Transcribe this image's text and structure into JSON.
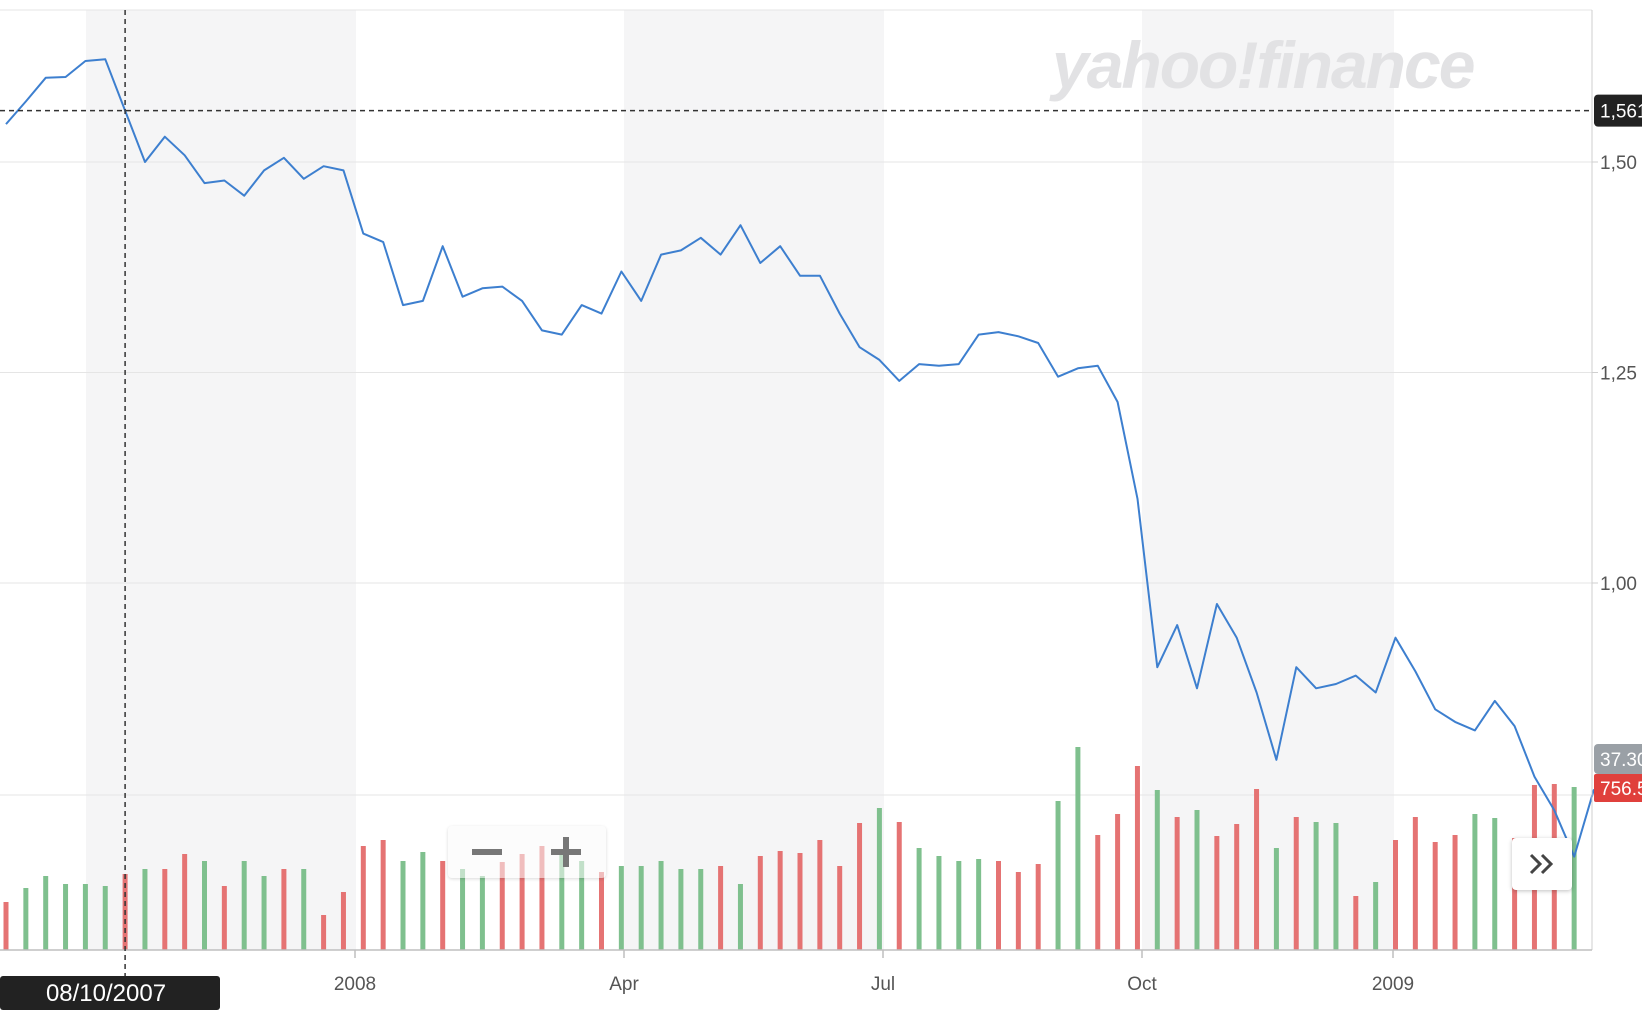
{
  "watermark": "yahoo!finance",
  "crosshair": {
    "date_label": "08/10/2007",
    "price_label": "1,561"
  },
  "price_tag": "37.30",
  "volume_tag": "756.5",
  "colors": {
    "line": "#3d7fcf",
    "volume_up": "#7fc08e",
    "volume_down": "#e57373",
    "band": "#f5f5f6",
    "grid": "#e5e5e5",
    "tag_dark": "#222222",
    "tag_grey": "#9aa0a6",
    "tag_red": "#e0403c"
  },
  "chart_data": {
    "type": "line",
    "xlabel": "",
    "ylabel": "",
    "x_ticks": [
      "2008",
      "Apr",
      "Jul",
      "Oct",
      "2009"
    ],
    "y_ticks": [
      "1,50",
      "1,25",
      "1,00"
    ],
    "series": [
      {
        "values": [
          1545,
          1572,
          1600,
          1601,
          1620,
          1622,
          1561,
          1500,
          1530,
          1508,
          1475,
          1478,
          1460,
          1490,
          1505,
          1480,
          1495,
          1490,
          1415,
          1405,
          1330,
          1335,
          1400,
          1340,
          1350,
          1352,
          1335,
          1300,
          1295,
          1330,
          1320,
          1370,
          1335,
          1390,
          1395,
          1410,
          1390,
          1425,
          1380,
          1400,
          1365,
          1365,
          1320,
          1280,
          1265,
          1240,
          1260,
          1258,
          1260,
          1295,
          1298,
          1293,
          1285,
          1245,
          1255,
          1258,
          1215,
          1100,
          900,
          950,
          875,
          975,
          935,
          870,
          790,
          900,
          875,
          880,
          890,
          870,
          935,
          895,
          850,
          835,
          825,
          860,
          830,
          770,
          730,
          675,
          755
        ]
      }
    ],
    "volume_bars": [
      {
        "v": 48,
        "dir": "down"
      },
      {
        "v": 62,
        "dir": "up"
      },
      {
        "v": 74,
        "dir": "up"
      },
      {
        "v": 66,
        "dir": "up"
      },
      {
        "v": 66,
        "dir": "up"
      },
      {
        "v": 64,
        "dir": "up"
      },
      {
        "v": 76,
        "dir": "down"
      },
      {
        "v": 81,
        "dir": "up"
      },
      {
        "v": 81,
        "dir": "down"
      },
      {
        "v": 96,
        "dir": "down"
      },
      {
        "v": 89,
        "dir": "up"
      },
      {
        "v": 64,
        "dir": "down"
      },
      {
        "v": 89,
        "dir": "up"
      },
      {
        "v": 74,
        "dir": "up"
      },
      {
        "v": 81,
        "dir": "down"
      },
      {
        "v": 81,
        "dir": "up"
      },
      {
        "v": 35,
        "dir": "down"
      },
      {
        "v": 58,
        "dir": "down"
      },
      {
        "v": 104,
        "dir": "down"
      },
      {
        "v": 110,
        "dir": "down"
      },
      {
        "v": 89,
        "dir": "up"
      },
      {
        "v": 98,
        "dir": "up"
      },
      {
        "v": 89,
        "dir": "down"
      },
      {
        "v": 81,
        "dir": "up"
      },
      {
        "v": 74,
        "dir": "up"
      },
      {
        "v": 88,
        "dir": "down"
      },
      {
        "v": 96,
        "dir": "down"
      },
      {
        "v": 104,
        "dir": "down"
      },
      {
        "v": 98,
        "dir": "up"
      },
      {
        "v": 89,
        "dir": "up"
      },
      {
        "v": 78,
        "dir": "down"
      },
      {
        "v": 84,
        "dir": "up"
      },
      {
        "v": 84,
        "dir": "up"
      },
      {
        "v": 89,
        "dir": "up"
      },
      {
        "v": 81,
        "dir": "up"
      },
      {
        "v": 81,
        "dir": "up"
      },
      {
        "v": 84,
        "dir": "down"
      },
      {
        "v": 66,
        "dir": "up"
      },
      {
        "v": 94,
        "dir": "down"
      },
      {
        "v": 99,
        "dir": "down"
      },
      {
        "v": 97,
        "dir": "down"
      },
      {
        "v": 110,
        "dir": "down"
      },
      {
        "v": 84,
        "dir": "down"
      },
      {
        "v": 127,
        "dir": "down"
      },
      {
        "v": 142,
        "dir": "up"
      },
      {
        "v": 128,
        "dir": "down"
      },
      {
        "v": 102,
        "dir": "up"
      },
      {
        "v": 94,
        "dir": "up"
      },
      {
        "v": 89,
        "dir": "up"
      },
      {
        "v": 91,
        "dir": "up"
      },
      {
        "v": 89,
        "dir": "down"
      },
      {
        "v": 78,
        "dir": "down"
      },
      {
        "v": 86,
        "dir": "down"
      },
      {
        "v": 149,
        "dir": "up"
      },
      {
        "v": 203,
        "dir": "up"
      },
      {
        "v": 115,
        "dir": "down"
      },
      {
        "v": 136,
        "dir": "down"
      },
      {
        "v": 184,
        "dir": "down"
      },
      {
        "v": 160,
        "dir": "up"
      },
      {
        "v": 133,
        "dir": "down"
      },
      {
        "v": 140,
        "dir": "up"
      },
      {
        "v": 114,
        "dir": "down"
      },
      {
        "v": 126,
        "dir": "down"
      },
      {
        "v": 161,
        "dir": "down"
      },
      {
        "v": 102,
        "dir": "up"
      },
      {
        "v": 133,
        "dir": "down"
      },
      {
        "v": 128,
        "dir": "up"
      },
      {
        "v": 127,
        "dir": "up"
      },
      {
        "v": 54,
        "dir": "down"
      },
      {
        "v": 68,
        "dir": "up"
      },
      {
        "v": 110,
        "dir": "down"
      },
      {
        "v": 133,
        "dir": "down"
      },
      {
        "v": 108,
        "dir": "down"
      },
      {
        "v": 115,
        "dir": "down"
      },
      {
        "v": 136,
        "dir": "up"
      },
      {
        "v": 132,
        "dir": "up"
      },
      {
        "v": 112,
        "dir": "down"
      },
      {
        "v": 165,
        "dir": "down"
      },
      {
        "v": 166,
        "dir": "down"
      },
      {
        "v": 163,
        "dir": "up"
      }
    ]
  }
}
